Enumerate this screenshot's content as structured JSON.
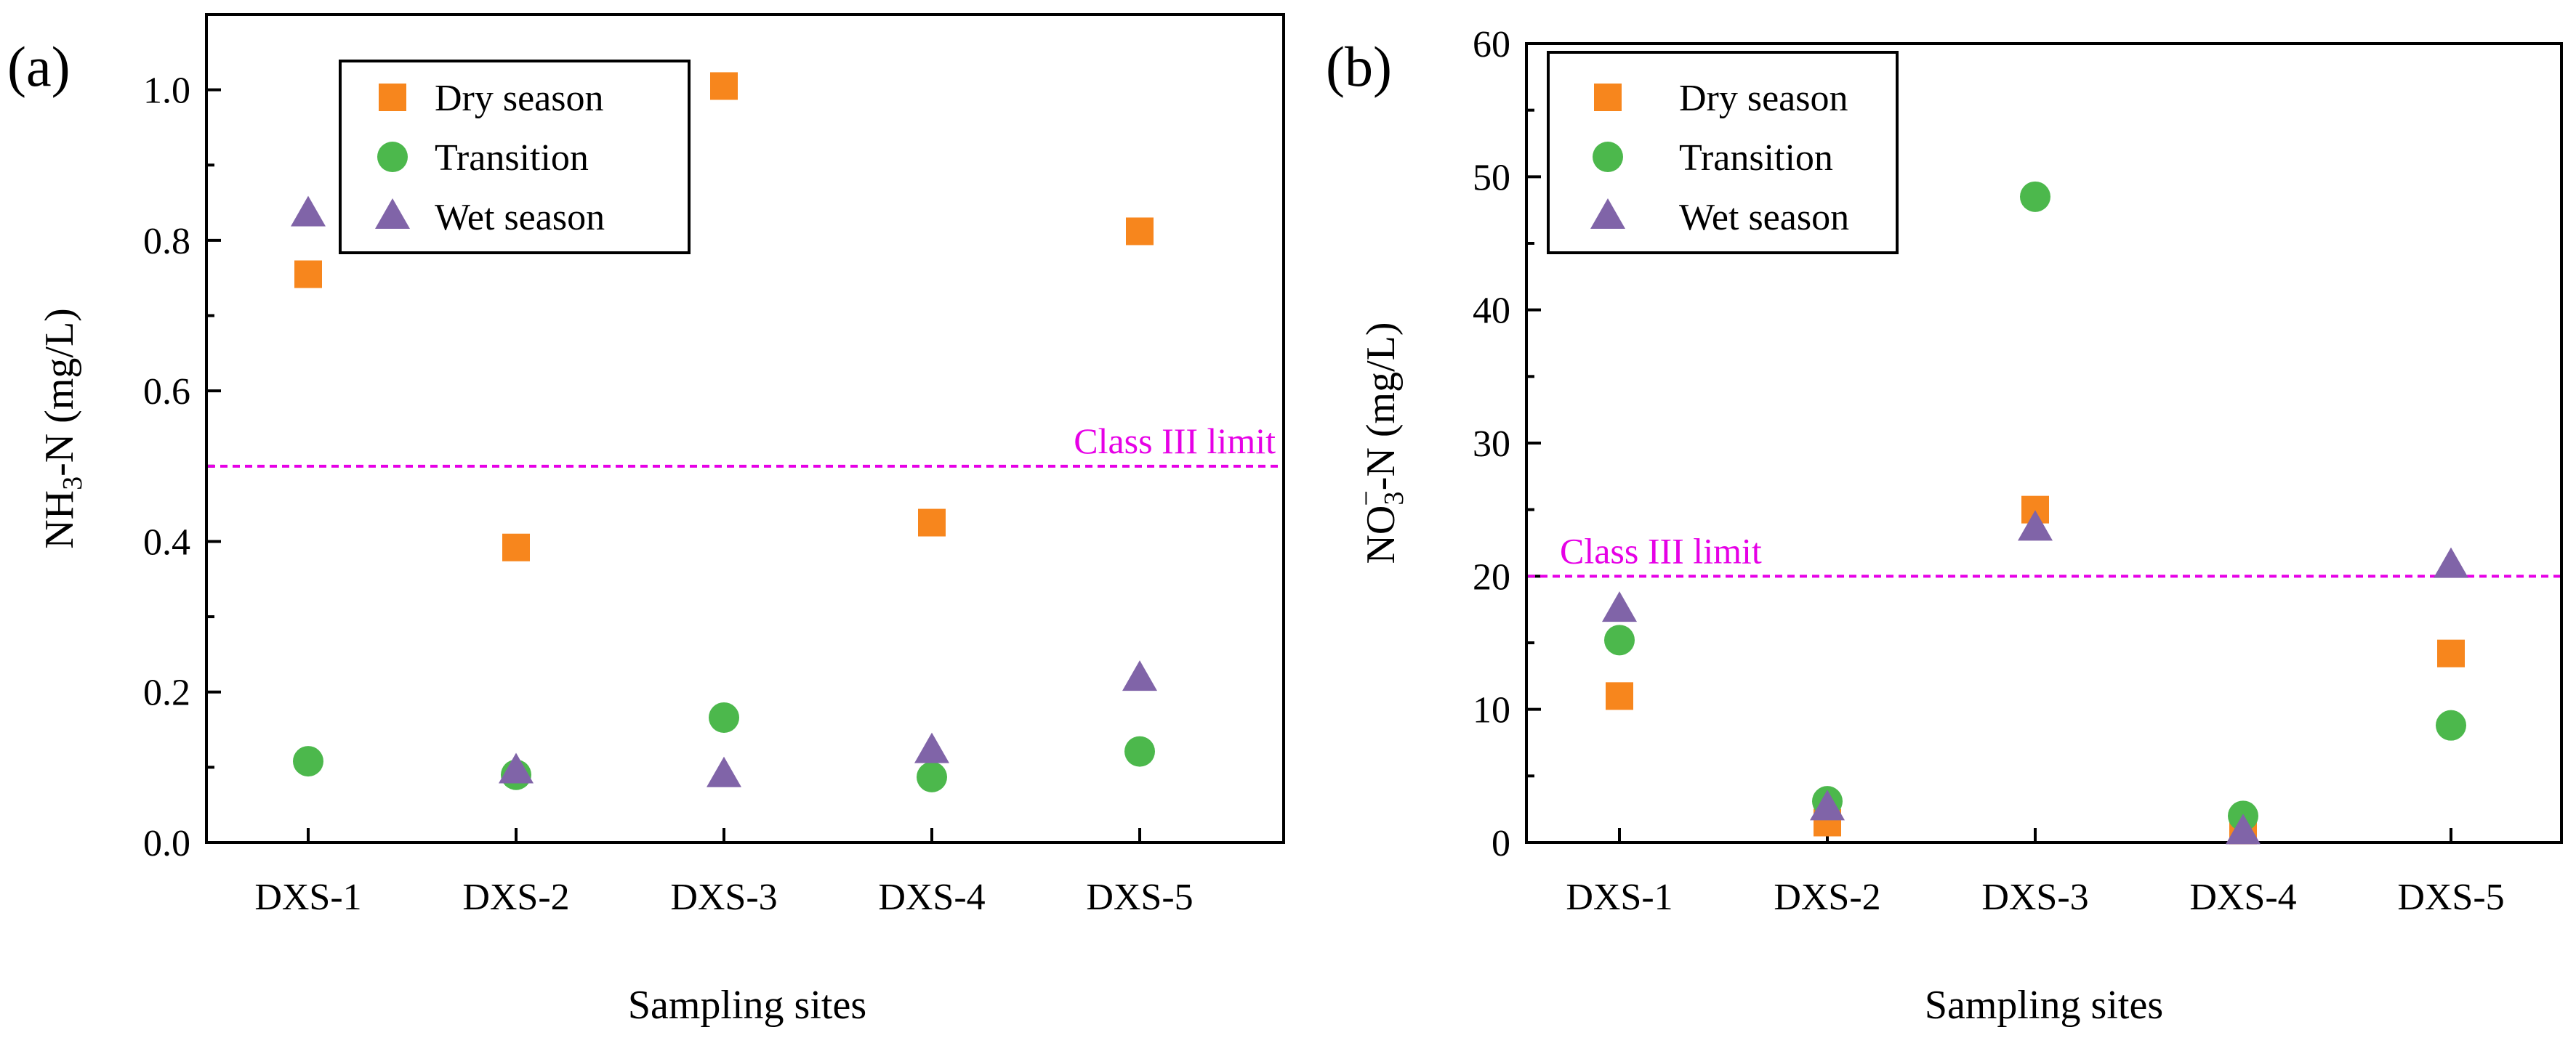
{
  "colors": {
    "dry": "#F7861D",
    "transition": "#4CB84C",
    "wet": "#8064A8",
    "limit": "#E600E6"
  },
  "legend": {
    "dry": "Dry season",
    "transition": "Transition",
    "wet": "Wet season"
  },
  "chart_data": [
    {
      "type": "scatter",
      "panel_label": "(a)",
      "categories": [
        "DXS-1",
        "DXS-2",
        "DXS-3",
        "DXS-4",
        "DXS-5"
      ],
      "xlabel": "Sampling sites",
      "ylabel": "NH3-N (mg/L)",
      "ylabel_parts": {
        "pre": "NH",
        "sub": "3",
        "post": "-N (mg/L)"
      },
      "ylim": [
        0,
        1.1
      ],
      "yticks": [
        0.0,
        0.2,
        0.4,
        0.6,
        0.8,
        1.0
      ],
      "ytick_labels": [
        "0.0",
        "0.2",
        "0.4",
        "0.6",
        "0.8",
        "1.0"
      ],
      "yminor": [
        0.1,
        0.3,
        0.5,
        0.7,
        0.9,
        1.1
      ],
      "legend_position": "top-center",
      "reference_line": {
        "value": 0.5,
        "label": "Class III limit",
        "label_position": "right"
      },
      "series": [
        {
          "key": "dry",
          "name": "Dry season",
          "marker": "square",
          "values": [
            0.755,
            0.392,
            1.005,
            0.425,
            0.812
          ]
        },
        {
          "key": "transition",
          "name": "Transition",
          "marker": "circle",
          "values": [
            0.108,
            0.09,
            0.166,
            0.087,
            0.121
          ]
        },
        {
          "key": "wet",
          "name": "Wet season",
          "marker": "triangle",
          "values": [
            0.835,
            0.095,
            0.09,
            0.122,
            0.218
          ]
        }
      ]
    },
    {
      "type": "scatter",
      "panel_label": "(b)",
      "categories": [
        "DXS-1",
        "DXS-2",
        "DXS-3",
        "DXS-4",
        "DXS-5"
      ],
      "xlabel": "Sampling sites",
      "ylabel": "NO3−-N (mg/L)",
      "ylabel_parts": {
        "pre": "NO",
        "sub": "3",
        "sup": "−",
        "post": "-N (mg/L)"
      },
      "ylim": [
        0,
        60
      ],
      "yticks": [
        0,
        10,
        20,
        30,
        40,
        50,
        60
      ],
      "ytick_labels": [
        "0",
        "10",
        "20",
        "30",
        "40",
        "50",
        "60"
      ],
      "yminor": [
        5,
        15,
        25,
        35,
        45,
        55
      ],
      "legend_position": "top-left",
      "reference_line": {
        "value": 20,
        "label": "Class III limit",
        "label_position": "left"
      },
      "series": [
        {
          "key": "dry",
          "name": "Dry season",
          "marker": "square",
          "values": [
            11.0,
            1.5,
            25.0,
            0.9,
            14.2
          ]
        },
        {
          "key": "transition",
          "name": "Transition",
          "marker": "circle",
          "values": [
            15.2,
            3.1,
            48.5,
            2.0,
            8.8
          ]
        },
        {
          "key": "wet",
          "name": "Wet season",
          "marker": "triangle",
          "values": [
            17.5,
            2.6,
            23.6,
            0.8,
            20.8
          ]
        }
      ]
    }
  ]
}
